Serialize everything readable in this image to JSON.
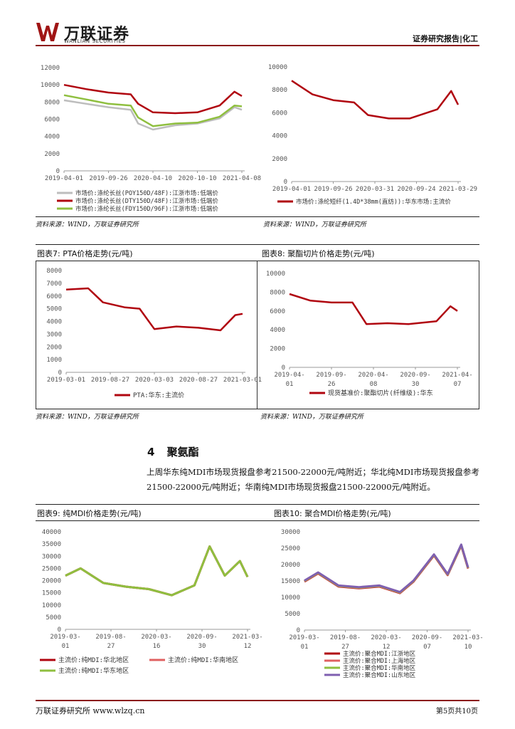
{
  "header": {
    "logo_cn": "万联证券",
    "logo_en": "WANLIAN SECURITIES",
    "report_type": "证券研究报告|化工"
  },
  "charts_top": {
    "left": {
      "yticks": [
        "12000",
        "10000",
        "8000",
        "6000",
        "4000",
        "2000",
        "0"
      ],
      "xticks": [
        "2019-04-01",
        "2019-09-26",
        "2020-04-10",
        "2020-10-10",
        "2021-04-08"
      ],
      "legend": [
        "市场价:涤纶长丝(POY150D/48F):江浙市场:低端价",
        "市场价:涤纶长丝(DTY150D/48F):江浙市场:低端价",
        "市场价:涤纶长丝(FDY150D/96F):江浙市场:低端价"
      ]
    },
    "right": {
      "yticks": [
        "10000",
        "8000",
        "6000",
        "4000",
        "2000",
        "0"
      ],
      "xticks": [
        "2019-04-01",
        "2019-09-26",
        "2020-03-31",
        "2020-09-24",
        "2021-03-29"
      ],
      "legend": [
        "市场价:涤纶短纤(1.4D*38mm(直纺)):华东市场:主流价"
      ]
    },
    "source_left": "资料来源：WIND，万联证券研究所",
    "source_right": "资料来源：WIND，万联证券研究所"
  },
  "fig7": {
    "title": "图表7:  PTA价格走势(元/吨)",
    "yticks": [
      "8000",
      "7000",
      "6000",
      "5000",
      "4000",
      "3000",
      "2000",
      "1000",
      "0"
    ],
    "xticks": [
      "2019-03-01",
      "2019-08-27",
      "2020-03-03",
      "2020-08-27",
      "2021-03-01"
    ],
    "legend": "PTA:华东:主流价",
    "source": "资料来源：WIND，万联证券研究所"
  },
  "fig8": {
    "title": "图表8:  聚酯切片价格走势(元/吨)",
    "yticks": [
      "10000",
      "8000",
      "6000",
      "4000",
      "2000",
      "0"
    ],
    "xticks_line1": [
      "2019-04-",
      "2019-09-",
      "2020-04-",
      "2020-09-",
      "2021-04-"
    ],
    "xticks_line2": [
      "01",
      "26",
      "08",
      "30",
      "07"
    ],
    "legend": "现货基准价:聚酯切片(纤维级):华东",
    "source": "资料来源：WIND，万联证券研究所"
  },
  "section": {
    "number": "4",
    "title": "聚氨酯",
    "paragraph": "上周华东纯MDI市场现货报盘参考21500-22000元/吨附近；华北纯MDI市场现货报盘参考21500-22000元/吨附近；华南纯MDI市场现货报盘21500-22000元/吨附近。"
  },
  "fig9": {
    "title": "图表9:  纯MDI价格走势(元/吨)",
    "yticks": [
      "40000",
      "35000",
      "30000",
      "25000",
      "20000",
      "15000",
      "10000",
      "5000",
      "0"
    ],
    "xticks_line1": [
      "2019-03-",
      "2019-08-",
      "2020-03-",
      "2020-09-",
      "2021-03-"
    ],
    "xticks_line2": [
      "01",
      "27",
      "16",
      "30",
      "12"
    ],
    "legend": [
      "主流价:纯MDI:华北地区",
      "主流价:纯MDI:华南地区",
      "主流价:纯MDI:华东地区"
    ]
  },
  "fig10": {
    "title": "图表10:  聚合MDI价格走势(元/吨)",
    "yticks": [
      "30000",
      "25000",
      "20000",
      "15000",
      "10000",
      "5000",
      "0"
    ],
    "xticks_line1": [
      "2019-03-",
      "2019-08-",
      "2020-03-",
      "2020-09-",
      "2021-03-"
    ],
    "xticks_line2": [
      "01",
      "27",
      "12",
      "07",
      "10"
    ],
    "legend": [
      "主流价:聚合MDI:江浙地区",
      "主流价:聚合MDI:上海地区",
      "主流价:聚合MDI:华南地区",
      "主流价:聚合MDI:山东地区"
    ]
  },
  "footer": {
    "left": "万联证券研究所 www.wlzq.cn",
    "right": "第5页共10页"
  },
  "colors": {
    "dark_red": "#b0050f",
    "gray": "#bdbdbd",
    "green": "#8fbf3f",
    "purple": "#7f5fb0",
    "red_line": "#e06060",
    "brand": "#8b1a1a"
  },
  "chart_data": [
    {
      "type": "line",
      "title": "",
      "x": [
        "2019-04",
        "2019-07",
        "2019-10",
        "2020-01",
        "2020-02",
        "2020-04",
        "2020-07",
        "2020-10",
        "2021-01",
        "2021-03",
        "2021-04"
      ],
      "series": [
        {
          "name": "市场价:涤纶长丝(POY150D/48F):江浙市场:低端价",
          "values": [
            8200,
            7800,
            7400,
            7100,
            5500,
            4800,
            5300,
            5500,
            6100,
            7400,
            7100
          ]
        },
        {
          "name": "市场价:涤纶长丝(DTY150D/48F):江浙市场:低端价",
          "values": [
            10000,
            9500,
            9100,
            8900,
            7800,
            6800,
            6700,
            6800,
            7600,
            9200,
            8700
          ]
        },
        {
          "name": "市场价:涤纶长丝(FDY150D/96F):江浙市场:低端价",
          "values": [
            8800,
            8300,
            7800,
            7600,
            6200,
            5200,
            5500,
            5600,
            6300,
            7600,
            7500
          ]
        }
      ],
      "ylim": [
        0,
        12000
      ]
    },
    {
      "type": "line",
      "title": "",
      "x": [
        "2019-04",
        "2019-07",
        "2019-10",
        "2020-01",
        "2020-03",
        "2020-06",
        "2020-09",
        "2021-01",
        "2021-03",
        "2021-04"
      ],
      "series": [
        {
          "name": "市场价:涤纶短纤(1.4D*38mm(直纺)):华东市场:主流价",
          "values": [
            8800,
            7600,
            7100,
            6900,
            5800,
            5500,
            5500,
            6300,
            7900,
            6700
          ]
        }
      ],
      "ylim": [
        0,
        10000
      ]
    },
    {
      "type": "line",
      "title": "",
      "x": [
        "2019-03",
        "2019-06",
        "2019-08",
        "2019-11",
        "2020-01",
        "2020-03",
        "2020-06",
        "2020-09",
        "2020-12",
        "2021-02",
        "2021-03"
      ],
      "series": [
        {
          "name": "PTA:华东:主流价",
          "values": [
            6500,
            6600,
            5500,
            5100,
            5000,
            3400,
            3600,
            3500,
            3300,
            4500,
            4600
          ]
        }
      ],
      "ylim": [
        0,
        8000
      ]
    },
    {
      "type": "line",
      "title": "",
      "x": [
        "2019-04",
        "2019-07",
        "2019-10",
        "2020-01",
        "2020-03",
        "2020-06",
        "2020-09",
        "2021-01",
        "2021-03",
        "2021-04"
      ],
      "series": [
        {
          "name": "现货基准价:聚酯切片(纤维级):华东",
          "values": [
            7800,
            7100,
            6900,
            6900,
            4600,
            4700,
            4600,
            4900,
            6500,
            6000
          ]
        }
      ],
      "ylim": [
        0,
        10000
      ]
    },
    {
      "type": "line",
      "title": "",
      "x": [
        "2019-03",
        "2019-05",
        "2019-08",
        "2019-11",
        "2020-02",
        "2020-05",
        "2020-08",
        "2020-10",
        "2020-12",
        "2021-02",
        "2021-03"
      ],
      "series": [
        {
          "name": "主流价:纯MDI:华北地区",
          "values": [
            22000,
            25000,
            19000,
            17500,
            16500,
            14000,
            18000,
            34000,
            22000,
            28000,
            21500
          ]
        },
        {
          "name": "主流价:纯MDI:华南地区",
          "values": [
            22000,
            25000,
            19000,
            17500,
            16500,
            14000,
            18000,
            34000,
            22000,
            28000,
            21500
          ]
        },
        {
          "name": "主流价:纯MDI:华东地区",
          "values": [
            22000,
            25000,
            19000,
            17500,
            16500,
            14000,
            18000,
            34000,
            22000,
            28000,
            21500
          ]
        }
      ],
      "ylim": [
        0,
        40000
      ]
    },
    {
      "type": "line",
      "title": "",
      "x": [
        "2019-03",
        "2019-05",
        "2019-08",
        "2019-11",
        "2020-02",
        "2020-05",
        "2020-07",
        "2020-10",
        "2020-12",
        "2021-02",
        "2021-03"
      ],
      "series": [
        {
          "name": "主流价:聚合MDI:江浙地区",
          "values": [
            15000,
            17500,
            13500,
            13000,
            13500,
            11500,
            15000,
            23000,
            17000,
            26000,
            19000
          ]
        },
        {
          "name": "主流价:聚合MDI:上海地区",
          "values": [
            15000,
            17500,
            13500,
            13000,
            13500,
            11500,
            15000,
            23000,
            17000,
            26000,
            19000
          ]
        },
        {
          "name": "主流价:聚合MDI:华南地区",
          "values": [
            15000,
            17500,
            13500,
            13000,
            13500,
            11500,
            15000,
            23000,
            17000,
            26000,
            19000
          ]
        },
        {
          "name": "主流价:聚合MDI:山东地区",
          "values": [
            15000,
            17500,
            13500,
            13000,
            13500,
            11500,
            15000,
            23000,
            17000,
            26000,
            19000
          ]
        }
      ],
      "ylim": [
        0,
        30000
      ]
    }
  ]
}
